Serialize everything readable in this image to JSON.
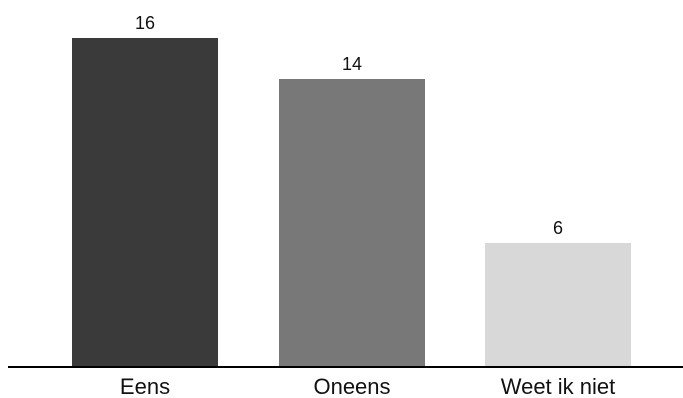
{
  "chart_data": {
    "type": "bar",
    "categories": [
      "Eens",
      "Oneens",
      "Weet ik niet"
    ],
    "values": [
      16,
      14,
      6
    ],
    "colors": [
      "#3a3a3a",
      "#787878",
      "#d8d8d8"
    ],
    "data_labels": [
      "16",
      "14",
      "6"
    ],
    "ylim": [
      0,
      16
    ],
    "grid": false,
    "legend": "none"
  }
}
